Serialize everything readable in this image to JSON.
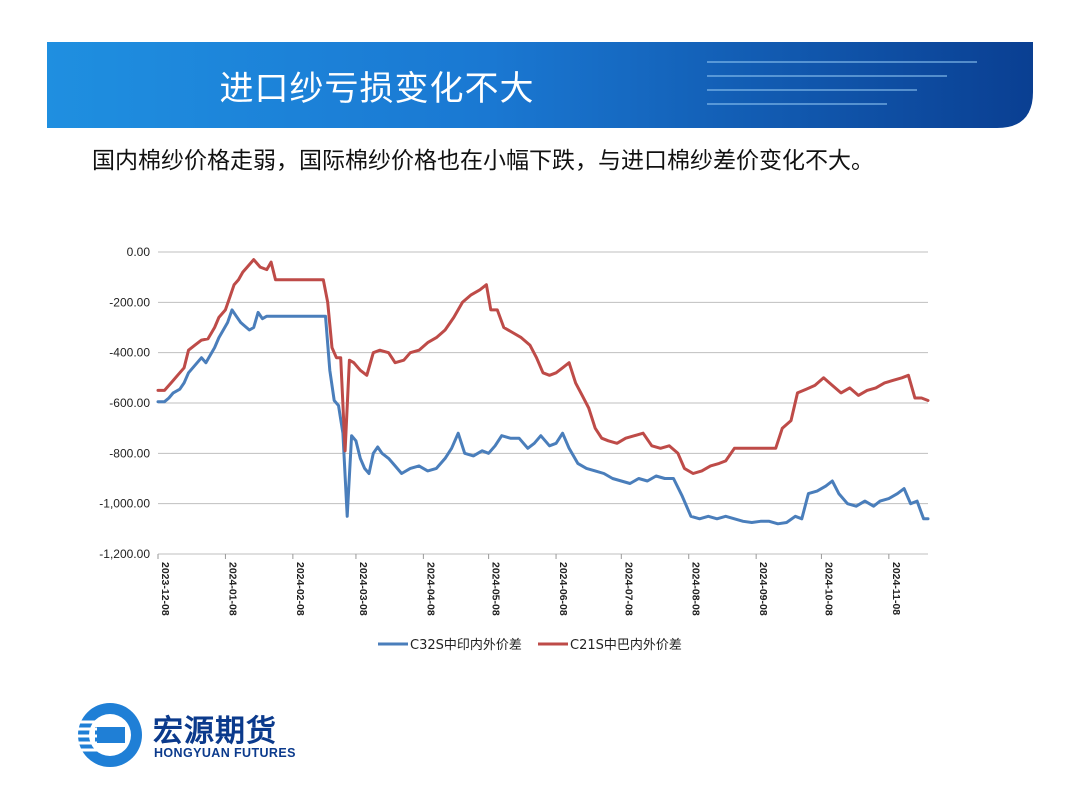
{
  "slide": {
    "title": "进口纱亏损变化不大",
    "subtitle": "国内棉纱价格走弱，国际棉纱价格也在小幅下跌，与进口棉纱差价变化不大。"
  },
  "logo": {
    "name_cn": "宏源期货",
    "name_en": "HONGYUAN FUTURES",
    "icon": "hongyuan-logo-icon"
  },
  "colors": {
    "banner_dark": "#0a3f92",
    "banner_light": "#1f8fe0",
    "series_blue": "#4a7ebb",
    "series_red": "#be4b48"
  },
  "chart_data": {
    "type": "line",
    "title": "",
    "xlabel": "",
    "ylabel": "",
    "ylim": [
      -1200,
      0
    ],
    "yticks": [
      0,
      -200,
      -400,
      -600,
      -800,
      -1000,
      -1200
    ],
    "ytick_labels": [
      "0.00",
      "-200.00",
      "-400.00",
      "-600.00",
      "-800.00",
      "-1,000.00",
      "-1,200.00"
    ],
    "xlim": [
      "2023-12-08",
      "2024-11-26"
    ],
    "xticks": [
      "2023-12-08",
      "2024-01-08",
      "2024-02-08",
      "2024-03-08",
      "2024-04-08",
      "2024-05-08",
      "2024-06-08",
      "2024-07-08",
      "2024-08-08",
      "2024-09-08",
      "2024-10-08",
      "2024-11-08"
    ],
    "grid": "horizontal",
    "legend_position": "bottom",
    "series": [
      {
        "name": "C32S中印内外价差",
        "color": "#4a7ebb",
        "points": [
          [
            "2023-12-08",
            -595
          ],
          [
            "2023-12-11",
            -595
          ],
          [
            "2023-12-13",
            -580
          ],
          [
            "2023-12-15",
            -560
          ],
          [
            "2023-12-18",
            -545
          ],
          [
            "2023-12-20",
            -520
          ],
          [
            "2023-12-22",
            -480
          ],
          [
            "2023-12-26",
            -440
          ],
          [
            "2023-12-28",
            -420
          ],
          [
            "2023-12-30",
            -440
          ],
          [
            "2024-01-01",
            -410
          ],
          [
            "2024-01-03",
            -380
          ],
          [
            "2024-01-05",
            -340
          ],
          [
            "2024-01-07",
            -310
          ],
          [
            "2024-01-09",
            -280
          ],
          [
            "2024-01-11",
            -230
          ],
          [
            "2024-01-13",
            -255
          ],
          [
            "2024-01-15",
            -280
          ],
          [
            "2024-01-17",
            -295
          ],
          [
            "2024-01-19",
            -310
          ],
          [
            "2024-01-21",
            -300
          ],
          [
            "2024-01-23",
            -240
          ],
          [
            "2024-01-25",
            -265
          ],
          [
            "2024-01-27",
            -255
          ],
          [
            "2024-01-30",
            -255
          ],
          [
            "2024-02-05",
            -255
          ],
          [
            "2024-02-12",
            -255
          ],
          [
            "2024-02-19",
            -255
          ],
          [
            "2024-02-23",
            -255
          ],
          [
            "2024-02-25",
            -470
          ],
          [
            "2024-02-27",
            -590
          ],
          [
            "2024-02-29",
            -610
          ],
          [
            "2024-03-02",
            -720
          ],
          [
            "2024-03-04",
            -1050
          ],
          [
            "2024-03-06",
            -730
          ],
          [
            "2024-03-08",
            -750
          ],
          [
            "2024-03-10",
            -820
          ],
          [
            "2024-03-12",
            -860
          ],
          [
            "2024-03-14",
            -880
          ],
          [
            "2024-03-16",
            -800
          ],
          [
            "2024-03-18",
            -775
          ],
          [
            "2024-03-20",
            -800
          ],
          [
            "2024-03-23",
            -820
          ],
          [
            "2024-03-26",
            -850
          ],
          [
            "2024-03-29",
            -880
          ],
          [
            "2024-04-02",
            -860
          ],
          [
            "2024-04-06",
            -850
          ],
          [
            "2024-04-10",
            -870
          ],
          [
            "2024-04-14",
            -860
          ],
          [
            "2024-04-18",
            -820
          ],
          [
            "2024-04-21",
            -780
          ],
          [
            "2024-04-24",
            -720
          ],
          [
            "2024-04-27",
            -800
          ],
          [
            "2024-05-01",
            -810
          ],
          [
            "2024-05-05",
            -790
          ],
          [
            "2024-05-08",
            -800
          ],
          [
            "2024-05-11",
            -770
          ],
          [
            "2024-05-14",
            -730
          ],
          [
            "2024-05-18",
            -740
          ],
          [
            "2024-05-22",
            -740
          ],
          [
            "2024-05-26",
            -780
          ],
          [
            "2024-05-29",
            -760
          ],
          [
            "2024-06-01",
            -730
          ],
          [
            "2024-06-05",
            -770
          ],
          [
            "2024-06-08",
            -760
          ],
          [
            "2024-06-11",
            -720
          ],
          [
            "2024-06-14",
            -780
          ],
          [
            "2024-06-18",
            -840
          ],
          [
            "2024-06-22",
            -860
          ],
          [
            "2024-06-26",
            -870
          ],
          [
            "2024-06-30",
            -880
          ],
          [
            "2024-07-04",
            -900
          ],
          [
            "2024-07-08",
            -910
          ],
          [
            "2024-07-12",
            -920
          ],
          [
            "2024-07-16",
            -900
          ],
          [
            "2024-07-20",
            -910
          ],
          [
            "2024-07-24",
            -890
          ],
          [
            "2024-07-28",
            -900
          ],
          [
            "2024-08-01",
            -900
          ],
          [
            "2024-08-05",
            -970
          ],
          [
            "2024-08-09",
            -1050
          ],
          [
            "2024-08-13",
            -1060
          ],
          [
            "2024-08-17",
            -1050
          ],
          [
            "2024-08-21",
            -1060
          ],
          [
            "2024-08-25",
            -1050
          ],
          [
            "2024-08-29",
            -1060
          ],
          [
            "2024-09-02",
            -1070
          ],
          [
            "2024-09-06",
            -1075
          ],
          [
            "2024-09-10",
            -1070
          ],
          [
            "2024-09-14",
            -1070
          ],
          [
            "2024-09-18",
            -1080
          ],
          [
            "2024-09-22",
            -1075
          ],
          [
            "2024-09-26",
            -1050
          ],
          [
            "2024-09-29",
            -1060
          ],
          [
            "2024-10-02",
            -960
          ],
          [
            "2024-10-06",
            -950
          ],
          [
            "2024-10-10",
            -930
          ],
          [
            "2024-10-13",
            -910
          ],
          [
            "2024-10-16",
            -960
          ],
          [
            "2024-10-20",
            -1000
          ],
          [
            "2024-10-24",
            -1010
          ],
          [
            "2024-10-28",
            -990
          ],
          [
            "2024-11-01",
            -1010
          ],
          [
            "2024-11-04",
            -990
          ],
          [
            "2024-11-08",
            -980
          ],
          [
            "2024-11-12",
            -960
          ],
          [
            "2024-11-15",
            -940
          ],
          [
            "2024-11-18",
            -1000
          ],
          [
            "2024-11-21",
            -990
          ],
          [
            "2024-11-24",
            -1060
          ],
          [
            "2024-11-26",
            -1060
          ]
        ]
      },
      {
        "name": "C21S中巴内外价差",
        "color": "#be4b48",
        "points": [
          [
            "2023-12-08",
            -550
          ],
          [
            "2023-12-11",
            -550
          ],
          [
            "2023-12-14",
            -520
          ],
          [
            "2023-12-17",
            -490
          ],
          [
            "2023-12-20",
            -460
          ],
          [
            "2023-12-22",
            -390
          ],
          [
            "2023-12-25",
            -370
          ],
          [
            "2023-12-28",
            -350
          ],
          [
            "2023-12-31",
            -345
          ],
          [
            "2024-01-03",
            -300
          ],
          [
            "2024-01-05",
            -260
          ],
          [
            "2024-01-08",
            -230
          ],
          [
            "2024-01-10",
            -180
          ],
          [
            "2024-01-12",
            -130
          ],
          [
            "2024-01-14",
            -110
          ],
          [
            "2024-01-16",
            -80
          ],
          [
            "2024-01-18",
            -60
          ],
          [
            "2024-01-21",
            -30
          ],
          [
            "2024-01-24",
            -60
          ],
          [
            "2024-01-27",
            -70
          ],
          [
            "2024-01-29",
            -40
          ],
          [
            "2024-01-31",
            -110
          ],
          [
            "2024-02-04",
            -110
          ],
          [
            "2024-02-10",
            -110
          ],
          [
            "2024-02-17",
            -110
          ],
          [
            "2024-02-22",
            -110
          ],
          [
            "2024-02-24",
            -200
          ],
          [
            "2024-02-26",
            -380
          ],
          [
            "2024-02-28",
            -420
          ],
          [
            "2024-03-01",
            -420
          ],
          [
            "2024-03-03",
            -790
          ],
          [
            "2024-03-05",
            -430
          ],
          [
            "2024-03-07",
            -440
          ],
          [
            "2024-03-10",
            -470
          ],
          [
            "2024-03-13",
            -490
          ],
          [
            "2024-03-16",
            -400
          ],
          [
            "2024-03-19",
            -390
          ],
          [
            "2024-03-23",
            -400
          ],
          [
            "2024-03-26",
            -440
          ],
          [
            "2024-03-30",
            -430
          ],
          [
            "2024-04-02",
            -400
          ],
          [
            "2024-04-06",
            -390
          ],
          [
            "2024-04-10",
            -360
          ],
          [
            "2024-04-14",
            -340
          ],
          [
            "2024-04-18",
            -310
          ],
          [
            "2024-04-22",
            -260
          ],
          [
            "2024-04-26",
            -200
          ],
          [
            "2024-04-30",
            -170
          ],
          [
            "2024-05-04",
            -150
          ],
          [
            "2024-05-07",
            -130
          ],
          [
            "2024-05-09",
            -230
          ],
          [
            "2024-05-12",
            -230
          ],
          [
            "2024-05-15",
            -300
          ],
          [
            "2024-05-19",
            -320
          ],
          [
            "2024-05-23",
            -340
          ],
          [
            "2024-05-27",
            -370
          ],
          [
            "2024-05-30",
            -420
          ],
          [
            "2024-06-02",
            -480
          ],
          [
            "2024-06-05",
            -490
          ],
          [
            "2024-06-08",
            -480
          ],
          [
            "2024-06-11",
            -460
          ],
          [
            "2024-06-14",
            -440
          ],
          [
            "2024-06-17",
            -520
          ],
          [
            "2024-06-20",
            -570
          ],
          [
            "2024-06-23",
            -620
          ],
          [
            "2024-06-26",
            -700
          ],
          [
            "2024-06-29",
            -740
          ],
          [
            "2024-07-02",
            -750
          ],
          [
            "2024-07-06",
            -760
          ],
          [
            "2024-07-10",
            -740
          ],
          [
            "2024-07-14",
            -730
          ],
          [
            "2024-07-18",
            -720
          ],
          [
            "2024-07-22",
            -770
          ],
          [
            "2024-07-26",
            -780
          ],
          [
            "2024-07-30",
            -770
          ],
          [
            "2024-08-03",
            -800
          ],
          [
            "2024-08-06",
            -860
          ],
          [
            "2024-08-10",
            -880
          ],
          [
            "2024-08-14",
            -870
          ],
          [
            "2024-08-18",
            -850
          ],
          [
            "2024-08-22",
            -840
          ],
          [
            "2024-08-25",
            -830
          ],
          [
            "2024-08-29",
            -780
          ],
          [
            "2024-09-03",
            -780
          ],
          [
            "2024-09-08",
            -780
          ],
          [
            "2024-09-13",
            -780
          ],
          [
            "2024-09-17",
            -780
          ],
          [
            "2024-09-20",
            -700
          ],
          [
            "2024-09-24",
            -670
          ],
          [
            "2024-09-27",
            -560
          ],
          [
            "2024-10-01",
            -545
          ],
          [
            "2024-10-05",
            -530
          ],
          [
            "2024-10-09",
            -500
          ],
          [
            "2024-10-13",
            -530
          ],
          [
            "2024-10-17",
            -560
          ],
          [
            "2024-10-21",
            -540
          ],
          [
            "2024-10-25",
            -570
          ],
          [
            "2024-10-29",
            -550
          ],
          [
            "2024-11-02",
            -540
          ],
          [
            "2024-11-06",
            -520
          ],
          [
            "2024-11-10",
            -510
          ],
          [
            "2024-11-14",
            -500
          ],
          [
            "2024-11-17",
            -490
          ],
          [
            "2024-11-20",
            -580
          ],
          [
            "2024-11-23",
            -580
          ],
          [
            "2024-11-26",
            -590
          ]
        ]
      }
    ]
  }
}
